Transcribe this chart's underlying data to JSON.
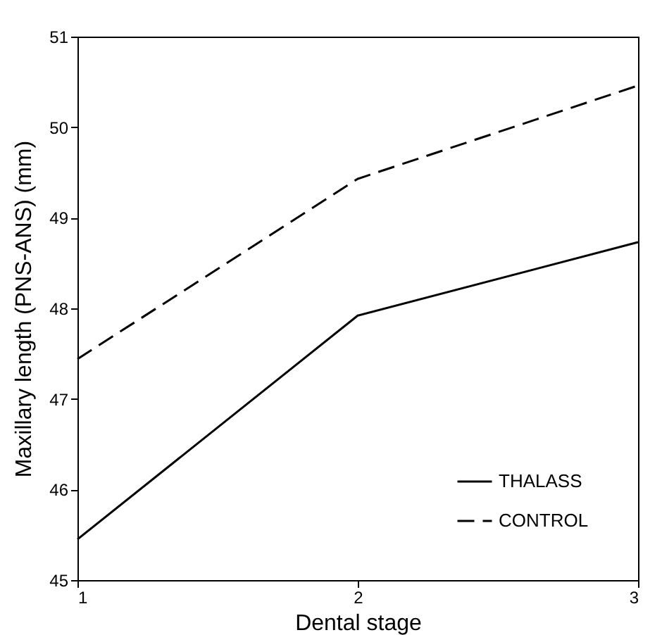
{
  "chart_data": {
    "type": "line",
    "xlabel": "Dental stage",
    "ylabel": "Maxillary length (PNS-ANS) (mm)",
    "x": [
      1,
      2,
      3
    ],
    "xlim": [
      1,
      3
    ],
    "xticks": [
      1,
      2,
      3
    ],
    "ylim": [
      45,
      51
    ],
    "yticks": [
      45,
      46,
      47,
      48,
      49,
      50,
      51
    ],
    "grid": false,
    "legend": "bottom right",
    "marker": "none",
    "series": [
      {
        "name": "THALASS",
        "color": "#000000",
        "line_style": "solid",
        "values": [
          45.45,
          47.92,
          48.73
        ]
      },
      {
        "name": "CONTROL",
        "color": "#000000",
        "line_style": "dashed",
        "values": [
          47.44,
          49.43,
          50.46
        ]
      }
    ]
  }
}
